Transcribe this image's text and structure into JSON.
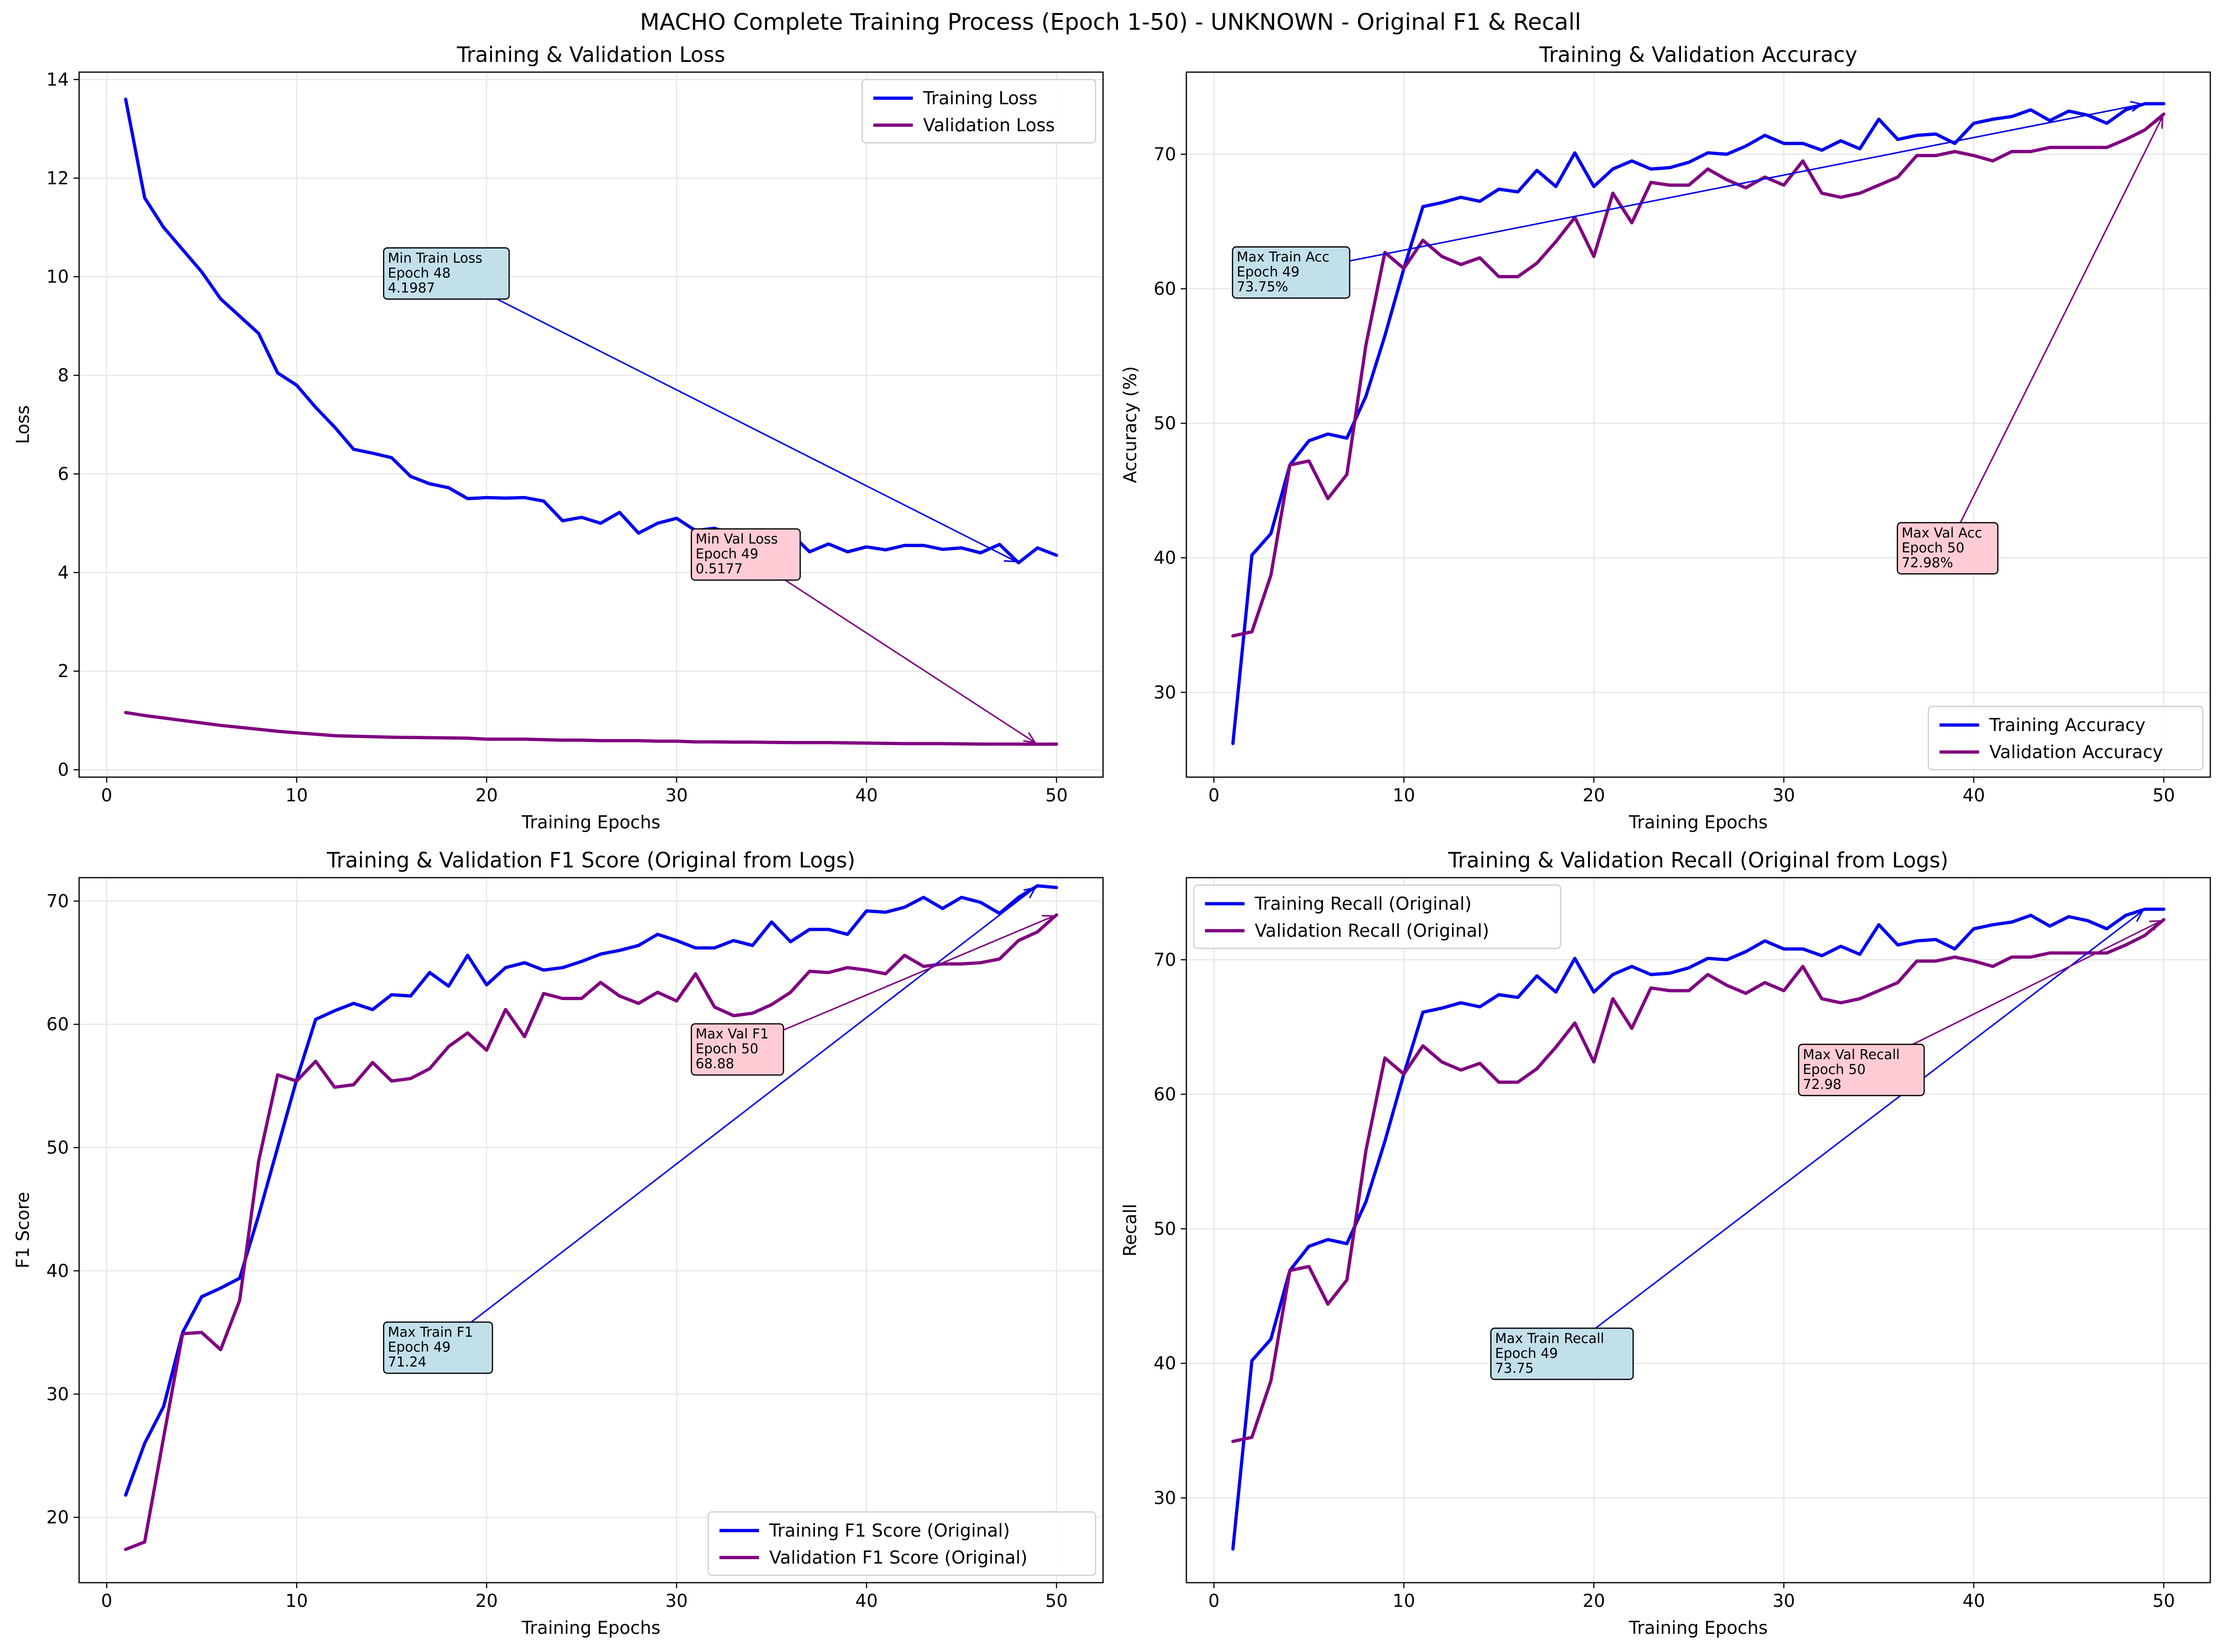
{
  "figure": {
    "title": "MACHO Complete Training Process (Epoch 1-50) - UNKNOWN - Original F1 & Recall"
  },
  "colors": {
    "train": "#0000ee",
    "val": "#800080",
    "grid": "#e6e6e6",
    "train_box": "#c2e0ea",
    "val_box": "#ffccd5"
  },
  "chart_data": [
    {
      "type": "line",
      "title": "Training & Validation Loss",
      "xlabel": "Training Epochs",
      "ylabel": "Loss",
      "xlim": [
        -1.45,
        52.45
      ],
      "ylim": [
        -0.15,
        14.15
      ],
      "xticks": [
        0,
        10,
        20,
        30,
        40,
        50
      ],
      "yticks": [
        0,
        2,
        4,
        6,
        8,
        10,
        12,
        14
      ],
      "grid": true,
      "legend_position": "upper right",
      "series": [
        {
          "name": "Training Loss",
          "x": [
            1,
            2,
            3,
            4,
            5,
            6,
            7,
            8,
            9,
            10,
            11,
            12,
            13,
            14,
            15,
            16,
            17,
            18,
            19,
            20,
            21,
            22,
            23,
            24,
            25,
            26,
            27,
            28,
            29,
            30,
            31,
            32,
            33,
            34,
            35,
            36,
            37,
            38,
            39,
            40,
            41,
            42,
            43,
            44,
            45,
            46,
            47,
            48,
            49,
            50
          ],
          "y": [
            13.6,
            11.6,
            11.0,
            10.55,
            10.1,
            9.55,
            9.2,
            8.85,
            8.05,
            7.8,
            7.35,
            6.95,
            6.5,
            6.42,
            6.33,
            5.95,
            5.8,
            5.72,
            5.5,
            5.52,
            5.51,
            5.52,
            5.45,
            5.05,
            5.12,
            5.0,
            5.22,
            4.8,
            5.0,
            5.1,
            4.85,
            4.9,
            4.75,
            4.75,
            4.65,
            4.8,
            4.42,
            4.58,
            4.42,
            4.52,
            4.46,
            4.55,
            4.55,
            4.47,
            4.5,
            4.4,
            4.57,
            4.1987,
            4.5,
            4.35
          ]
        },
        {
          "name": "Validation Loss",
          "x": [
            1,
            2,
            3,
            4,
            5,
            6,
            7,
            8,
            9,
            10,
            11,
            12,
            13,
            14,
            15,
            16,
            17,
            18,
            19,
            20,
            21,
            22,
            23,
            24,
            25,
            26,
            27,
            28,
            29,
            30,
            31,
            32,
            33,
            34,
            35,
            36,
            37,
            38,
            39,
            40,
            41,
            42,
            43,
            44,
            45,
            46,
            47,
            48,
            49,
            50
          ],
          "y": [
            1.16,
            1.1,
            1.05,
            1.0,
            0.95,
            0.9,
            0.86,
            0.82,
            0.78,
            0.75,
            0.72,
            0.69,
            0.68,
            0.67,
            0.66,
            0.655,
            0.65,
            0.645,
            0.64,
            0.62,
            0.62,
            0.62,
            0.61,
            0.6,
            0.6,
            0.59,
            0.59,
            0.59,
            0.58,
            0.58,
            0.565,
            0.565,
            0.56,
            0.56,
            0.555,
            0.55,
            0.55,
            0.55,
            0.545,
            0.54,
            0.535,
            0.53,
            0.53,
            0.53,
            0.525,
            0.52,
            0.52,
            0.52,
            0.5177,
            0.52
          ]
        }
      ],
      "annotations": [
        {
          "series": 0,
          "lines": [
            "Min Train Loss",
            "Epoch 48",
            "4.1987"
          ],
          "point": [
            48,
            4.1987
          ],
          "text_at": [
            14.8,
            10.5
          ]
        },
        {
          "series": 1,
          "lines": [
            "Min Val Loss",
            "Epoch 49",
            "0.5177"
          ],
          "point": [
            49,
            0.5177
          ],
          "text_at": [
            31.0,
            4.8
          ]
        }
      ]
    },
    {
      "type": "line",
      "title": "Training & Validation Accuracy",
      "xlabel": "Training Epochs",
      "ylabel": "Accuracy (%)",
      "xlim": [
        -1.45,
        52.45
      ],
      "ylim": [
        23.7,
        76.1
      ],
      "xticks": [
        0,
        10,
        20,
        30,
        40,
        50
      ],
      "yticks": [
        30,
        40,
        50,
        60,
        70
      ],
      "grid": true,
      "legend_position": "lower right",
      "series": [
        {
          "name": "Training Accuracy",
          "x": [
            1,
            2,
            3,
            4,
            5,
            6,
            7,
            8,
            9,
            10,
            11,
            12,
            13,
            14,
            15,
            16,
            17,
            18,
            19,
            20,
            21,
            22,
            23,
            24,
            25,
            26,
            27,
            28,
            29,
            30,
            31,
            32,
            33,
            34,
            35,
            36,
            37,
            38,
            39,
            40,
            41,
            42,
            43,
            44,
            45,
            46,
            47,
            48,
            49,
            50
          ],
          "y": [
            26.2,
            40.2,
            41.8,
            46.9,
            48.7,
            49.2,
            48.9,
            52.0,
            56.5,
            61.5,
            66.1,
            66.4,
            66.8,
            66.5,
            67.4,
            67.2,
            68.8,
            67.6,
            70.1,
            67.6,
            68.9,
            69.5,
            68.9,
            69.0,
            69.4,
            70.1,
            70.0,
            70.6,
            71.4,
            70.8,
            70.8,
            70.3,
            71.0,
            70.4,
            72.6,
            71.1,
            71.4,
            71.5,
            70.8,
            72.3,
            72.6,
            72.8,
            73.3,
            72.5,
            73.2,
            72.9,
            72.3,
            73.3,
            73.75,
            73.75
          ]
        },
        {
          "name": "Validation Accuracy",
          "x": [
            1,
            2,
            3,
            4,
            5,
            6,
            7,
            8,
            9,
            10,
            11,
            12,
            13,
            14,
            15,
            16,
            17,
            18,
            19,
            20,
            21,
            22,
            23,
            24,
            25,
            26,
            27,
            28,
            29,
            30,
            31,
            32,
            33,
            34,
            35,
            36,
            37,
            38,
            39,
            40,
            41,
            42,
            43,
            44,
            45,
            46,
            47,
            48,
            49,
            50
          ],
          "y": [
            34.2,
            34.5,
            38.7,
            46.9,
            47.2,
            44.4,
            46.2,
            55.8,
            62.7,
            61.5,
            63.6,
            62.4,
            61.8,
            62.3,
            60.9,
            60.9,
            61.9,
            63.5,
            65.3,
            62.4,
            67.1,
            64.9,
            67.9,
            67.7,
            67.7,
            68.9,
            68.1,
            67.5,
            68.3,
            67.7,
            69.5,
            67.1,
            66.8,
            67.1,
            67.7,
            68.3,
            69.9,
            69.9,
            70.2,
            69.9,
            69.5,
            70.2,
            70.2,
            70.5,
            70.5,
            70.5,
            70.5,
            71.1,
            71.8,
            72.98
          ]
        }
      ],
      "annotations": [
        {
          "series": 0,
          "lines": [
            "Max Train Acc",
            "Epoch 49",
            "73.75%"
          ],
          "point": [
            49,
            73.75
          ],
          "text_at": [
            1.2,
            62.8
          ]
        },
        {
          "series": 1,
          "lines": [
            "Max Val Acc",
            "Epoch 50",
            "72.98%"
          ],
          "point": [
            50,
            72.98
          ],
          "text_at": [
            36.2,
            42.3
          ]
        }
      ]
    },
    {
      "type": "line",
      "title": "Training & Validation F1 Score (Original from Logs)",
      "xlabel": "Training Epochs",
      "ylabel": "F1 Score",
      "xlim": [
        -1.45,
        52.45
      ],
      "ylim": [
        14.7,
        71.9
      ],
      "xticks": [
        0,
        10,
        20,
        30,
        40,
        50
      ],
      "yticks": [
        20,
        30,
        40,
        50,
        60,
        70
      ],
      "grid": true,
      "legend_position": "lower right",
      "series": [
        {
          "name": "Training F1 Score (Original)",
          "x": [
            1,
            2,
            3,
            4,
            5,
            6,
            7,
            8,
            9,
            10,
            11,
            12,
            13,
            14,
            15,
            16,
            17,
            18,
            19,
            20,
            21,
            22,
            23,
            24,
            25,
            26,
            27,
            28,
            29,
            30,
            31,
            32,
            33,
            34,
            35,
            36,
            37,
            38,
            39,
            40,
            41,
            42,
            43,
            44,
            45,
            46,
            47,
            48,
            49,
            50
          ],
          "y": [
            21.8,
            26.0,
            29.0,
            35.0,
            37.9,
            38.6,
            39.4,
            44.5,
            50.0,
            55.5,
            60.4,
            61.1,
            61.7,
            61.2,
            62.4,
            62.3,
            64.2,
            63.1,
            65.6,
            63.2,
            64.6,
            65.0,
            64.4,
            64.6,
            65.1,
            65.7,
            66.0,
            66.4,
            67.3,
            66.8,
            66.2,
            66.2,
            66.8,
            66.4,
            68.3,
            66.7,
            67.7,
            67.7,
            67.3,
            69.2,
            69.1,
            69.5,
            70.3,
            69.4,
            70.3,
            69.9,
            69.0,
            70.3,
            71.24,
            71.1
          ]
        },
        {
          "name": "Validation F1 Score (Original)",
          "x": [
            1,
            2,
            3,
            4,
            5,
            6,
            7,
            8,
            9,
            10,
            11,
            12,
            13,
            14,
            15,
            16,
            17,
            18,
            19,
            20,
            21,
            22,
            23,
            24,
            25,
            26,
            27,
            28,
            29,
            30,
            31,
            32,
            33,
            34,
            35,
            36,
            37,
            38,
            39,
            40,
            41,
            42,
            43,
            44,
            45,
            46,
            47,
            48,
            49,
            50
          ],
          "y": [
            17.4,
            18.0,
            26.5,
            34.9,
            35.0,
            33.6,
            37.6,
            48.9,
            55.9,
            55.4,
            57.0,
            54.9,
            55.1,
            56.9,
            55.4,
            55.6,
            56.4,
            58.2,
            59.3,
            57.9,
            61.2,
            59.0,
            62.5,
            62.1,
            62.1,
            63.4,
            62.3,
            61.7,
            62.6,
            61.9,
            64.1,
            61.4,
            60.7,
            60.9,
            61.6,
            62.6,
            64.3,
            64.2,
            64.6,
            64.4,
            64.1,
            65.6,
            64.7,
            64.9,
            64.9,
            65.0,
            65.3,
            66.8,
            67.5,
            68.88
          ]
        }
      ],
      "annotations": [
        {
          "series": 0,
          "lines": [
            "Max Train F1",
            "Epoch 49",
            "71.24"
          ],
          "point": [
            49,
            71.24
          ],
          "text_at": [
            14.8,
            35.5
          ]
        },
        {
          "series": 1,
          "lines": [
            "Max Val F1",
            "Epoch 50",
            "68.88"
          ],
          "point": [
            50,
            68.88
          ],
          "text_at": [
            31.0,
            59.7
          ]
        }
      ]
    },
    {
      "type": "line",
      "title": "Training & Validation Recall (Original from Logs)",
      "xlabel": "Training Epochs",
      "ylabel": "Recall",
      "xlim": [
        -1.45,
        52.45
      ],
      "ylim": [
        23.7,
        76.1
      ],
      "xticks": [
        0,
        10,
        20,
        30,
        40,
        50
      ],
      "yticks": [
        30,
        40,
        50,
        60,
        70
      ],
      "grid": true,
      "legend_position": "upper left",
      "series": [
        {
          "name": "Training Recall (Original)",
          "x": [
            1,
            2,
            3,
            4,
            5,
            6,
            7,
            8,
            9,
            10,
            11,
            12,
            13,
            14,
            15,
            16,
            17,
            18,
            19,
            20,
            21,
            22,
            23,
            24,
            25,
            26,
            27,
            28,
            29,
            30,
            31,
            32,
            33,
            34,
            35,
            36,
            37,
            38,
            39,
            40,
            41,
            42,
            43,
            44,
            45,
            46,
            47,
            48,
            49,
            50
          ],
          "y": [
            26.2,
            40.2,
            41.8,
            46.9,
            48.7,
            49.2,
            48.9,
            52.0,
            56.5,
            61.5,
            66.1,
            66.4,
            66.8,
            66.5,
            67.4,
            67.2,
            68.8,
            67.6,
            70.1,
            67.6,
            68.9,
            69.5,
            68.9,
            69.0,
            69.4,
            70.1,
            70.0,
            70.6,
            71.4,
            70.8,
            70.8,
            70.3,
            71.0,
            70.4,
            72.6,
            71.1,
            71.4,
            71.5,
            70.8,
            72.3,
            72.6,
            72.8,
            73.3,
            72.5,
            73.2,
            72.9,
            72.3,
            73.3,
            73.75,
            73.75
          ]
        },
        {
          "name": "Validation Recall (Original)",
          "x": [
            1,
            2,
            3,
            4,
            5,
            6,
            7,
            8,
            9,
            10,
            11,
            12,
            13,
            14,
            15,
            16,
            17,
            18,
            19,
            20,
            21,
            22,
            23,
            24,
            25,
            26,
            27,
            28,
            29,
            30,
            31,
            32,
            33,
            34,
            35,
            36,
            37,
            38,
            39,
            40,
            41,
            42,
            43,
            44,
            45,
            46,
            47,
            48,
            49,
            50
          ],
          "y": [
            34.2,
            34.5,
            38.7,
            46.9,
            47.2,
            44.4,
            46.2,
            55.8,
            62.7,
            61.5,
            63.6,
            62.4,
            61.8,
            62.3,
            60.9,
            60.9,
            61.9,
            63.5,
            65.3,
            62.4,
            67.1,
            64.9,
            67.9,
            67.7,
            67.7,
            68.9,
            68.1,
            67.5,
            68.3,
            67.7,
            69.5,
            67.1,
            66.8,
            67.1,
            67.7,
            68.3,
            69.9,
            69.9,
            70.2,
            69.9,
            69.5,
            70.2,
            70.2,
            70.5,
            70.5,
            70.5,
            70.5,
            71.1,
            71.8,
            72.98
          ]
        }
      ],
      "annotations": [
        {
          "series": 0,
          "lines": [
            "Max Train Recall",
            "Epoch 49",
            "73.75"
          ],
          "point": [
            49,
            73.75
          ],
          "text_at": [
            14.8,
            42.3
          ]
        },
        {
          "series": 1,
          "lines": [
            "Max Val Recall",
            "Epoch 50",
            "72.98"
          ],
          "point": [
            50,
            72.98
          ],
          "text_at": [
            31.0,
            63.4
          ]
        }
      ]
    }
  ]
}
